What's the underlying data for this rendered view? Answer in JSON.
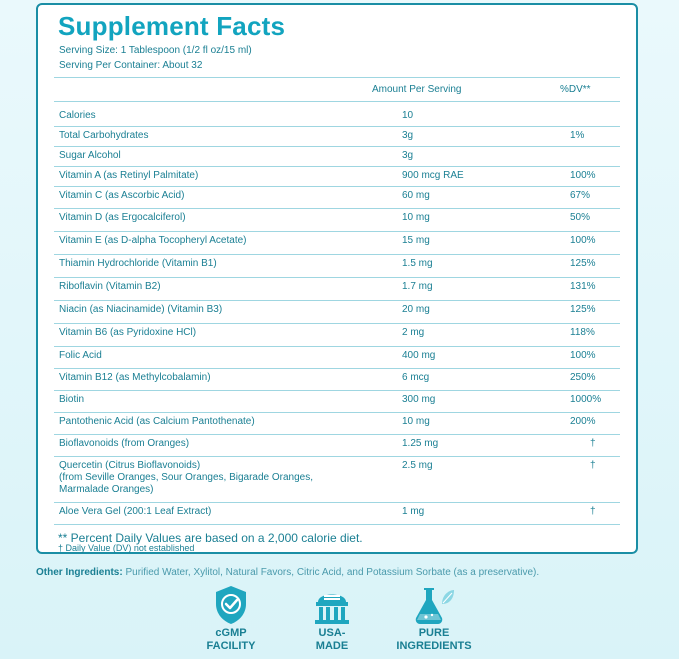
{
  "title": "Supplement Facts",
  "serving_size": "Serving Size: 1 Tablespoon (1/2 fl oz/15 ml)",
  "servings_per_container": "Serving Per Container: About 32",
  "header": {
    "amount": "Amount Per Serving",
    "dv": "%DV**"
  },
  "rows": [
    {
      "name": "Calories",
      "amount": "10",
      "dv": ""
    },
    {
      "name": "Total Carbohydrates",
      "amount": "3g",
      "dv": "1%"
    },
    {
      "name": "Sugar Alcohol",
      "amount": "3g",
      "dv": ""
    },
    {
      "name": "Vitamin A (as Retinyl Palmitate)",
      "amount": "900 mcg RAE",
      "dv": "100%"
    },
    {
      "name": "Vitamin C (as Ascorbic Acid)",
      "amount": "60 mg",
      "dv": "67%"
    },
    {
      "name": "Vitamin D (as Ergocalciferol)",
      "amount": "10 mg",
      "dv": "50%"
    },
    {
      "name": "Vitamin E (as D-alpha Tocopheryl Acetate)",
      "amount": "15 mg",
      "dv": "100%"
    },
    {
      "name": "Thiamin Hydrochloride (Vitamin B1)",
      "amount": "1.5 mg",
      "dv": "125%"
    },
    {
      "name": "Riboflavin (Vitamin B2)",
      "amount": "1.7 mg",
      "dv": "131%"
    },
    {
      "name": "Niacin (as Niacinamide) (Vitamin B3)",
      "amount": "20 mg",
      "dv": "125%"
    },
    {
      "name": "Vitamin B6 (as Pyridoxine HCl)",
      "amount": "2 mg",
      "dv": "118%"
    },
    {
      "name": "Folic Acid",
      "amount": "400 mg",
      "dv": "100%"
    },
    {
      "name": "Vitamin B12 (as Methylcobalamin)",
      "amount": "6 mcg",
      "dv": "250%"
    },
    {
      "name": "Biotin",
      "amount": "300 mg",
      "dv": "1000%"
    },
    {
      "name": "Pantothenic Acid (as Calcium Pantothenate)",
      "amount": "10 mg",
      "dv": "200%"
    },
    {
      "name": "Bioflavonoids (from Oranges)",
      "amount": "1.25 mg",
      "dv": "†"
    },
    {
      "name": "Quercetin (Citrus Bioflavonoids)\n(from Seville Oranges, Sour Oranges, Bigarade Oranges,\nMarmalade Oranges)",
      "amount": "2.5 mg",
      "dv": "†"
    },
    {
      "name": "Aloe Vera Gel (200:1 Leaf Extract)",
      "amount": "1 mg",
      "dv": "†"
    }
  ],
  "footnote_dv": "** Percent Daily Values are based on a 2,000 calorie diet.",
  "footnote_dagger": "† Daily Value (DV) not established",
  "other_ingredients": {
    "label": "Other Ingredients:",
    "text": " Purified Water, Xylitol, Natural Favors, Citric Acid, and Potassium Sorbate (as a preservative)."
  },
  "badges": [
    {
      "icon": "shield-check-icon",
      "label": "cGMP\nFACILITY"
    },
    {
      "icon": "usa-building-icon",
      "label": "USA-\nMADE"
    },
    {
      "icon": "flask-leaf-icon",
      "label": "PURE\nINGREDIENTS"
    }
  ],
  "colors": {
    "accent": "#12a4bf",
    "text": "#1a7f93",
    "rule": "#9fd6e1",
    "badge": "#1fa6bf"
  }
}
